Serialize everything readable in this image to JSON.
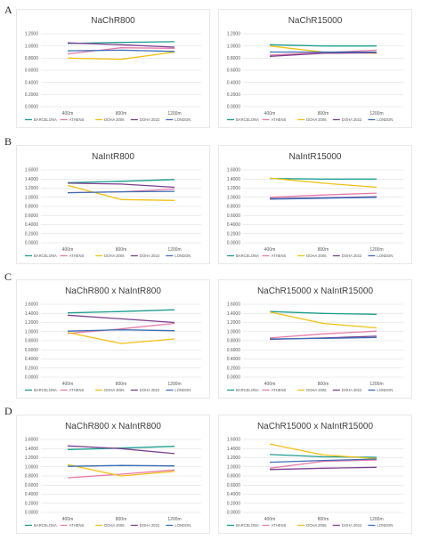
{
  "panel_letters": [
    "A",
    "B",
    "C",
    "D"
  ],
  "legend": [
    "BARCELONA",
    "ATHENS",
    "DOHA 2006",
    "DOHA 2022",
    "LONDON"
  ],
  "series_colors": [
    "#1a9e8f",
    "#e87aa8",
    "#f2c014",
    "#7b3f8f",
    "#3a6fb5"
  ],
  "chart_data": [
    {
      "type": "line",
      "title": "NaChR800",
      "x": [
        "400m",
        "800m",
        "1200m"
      ],
      "ylim": [
        0,
        1.2
      ],
      "yticks": [
        "0.0000",
        "0.2000",
        "0.4000",
        "0.6000",
        "0.8000",
        "1.0000",
        "1.2000"
      ],
      "grid": true,
      "legend_position": "bottom",
      "series": [
        {
          "name": "BARCELONA",
          "values": [
            1.04,
            1.06,
            1.07
          ]
        },
        {
          "name": "ATHENS",
          "values": [
            0.87,
            0.97,
            0.96
          ]
        },
        {
          "name": "DOHA 2006",
          "values": [
            0.8,
            0.78,
            0.9
          ]
        },
        {
          "name": "DOHA 2022",
          "values": [
            1.05,
            1.02,
            0.98
          ]
        },
        {
          "name": "LONDON",
          "values": [
            0.92,
            0.93,
            0.91
          ]
        }
      ]
    },
    {
      "type": "line",
      "title": "NaChR15000",
      "x": [
        "400m",
        "800m",
        "1200m"
      ],
      "ylim": [
        0,
        1.2
      ],
      "yticks": [
        "0.0000",
        "0.2000",
        "0.4000",
        "0.6000",
        "0.8000",
        "1.0000",
        "1.2000"
      ],
      "grid": true,
      "legend_position": "bottom",
      "series": [
        {
          "name": "BARCELONA",
          "values": [
            1.02,
            1.0,
            1.0
          ]
        },
        {
          "name": "ATHENS",
          "values": [
            0.85,
            0.89,
            0.93
          ]
        },
        {
          "name": "DOHA 2006",
          "values": [
            1.0,
            0.9,
            0.88
          ]
        },
        {
          "name": "DOHA 2022",
          "values": [
            0.83,
            0.88,
            0.89
          ]
        },
        {
          "name": "LONDON",
          "values": [
            0.9,
            0.9,
            0.9
          ]
        }
      ]
    },
    {
      "type": "line",
      "title": "NaIntR800",
      "x": [
        "400m",
        "800m",
        "1200m"
      ],
      "ylim": [
        0,
        1.6
      ],
      "yticks": [
        "0.0000",
        "0.2000",
        "0.4000",
        "0.6000",
        "0.8000",
        "1.0000",
        "1.2000",
        "1.4000",
        "1.6000"
      ],
      "grid": true,
      "legend_position": "bottom",
      "series": [
        {
          "name": "BARCELONA",
          "values": [
            1.32,
            1.35,
            1.39
          ]
        },
        {
          "name": "ATHENS",
          "values": [
            1.1,
            1.12,
            1.18
          ]
        },
        {
          "name": "DOHA 2006",
          "values": [
            1.26,
            0.95,
            0.93
          ]
        },
        {
          "name": "DOHA 2022",
          "values": [
            1.31,
            1.29,
            1.22
          ]
        },
        {
          "name": "LONDON",
          "values": [
            1.1,
            1.12,
            1.13
          ]
        }
      ]
    },
    {
      "type": "line",
      "title": "NaIntR15000",
      "x": [
        "400m",
        "800m",
        "1200m"
      ],
      "ylim": [
        0,
        1.6
      ],
      "yticks": [
        "0.0000",
        "0.2000",
        "0.4000",
        "0.6000",
        "0.8000",
        "1.0000",
        "1.2000",
        "1.4000",
        "1.6000"
      ],
      "grid": true,
      "legend_position": "bottom",
      "series": [
        {
          "name": "BARCELONA",
          "values": [
            1.41,
            1.4,
            1.4
          ]
        },
        {
          "name": "ATHENS",
          "values": [
            1.0,
            1.05,
            1.09
          ]
        },
        {
          "name": "DOHA 2006",
          "values": [
            1.42,
            1.31,
            1.22
          ]
        },
        {
          "name": "DOHA 2022",
          "values": [
            0.97,
            0.99,
            1.01
          ]
        },
        {
          "name": "LONDON",
          "values": [
            0.96,
            0.98,
            1.0
          ]
        }
      ]
    },
    {
      "type": "line",
      "title": "NaChR800 x NaIntR800",
      "x": [
        "400m",
        "800m",
        "1200m"
      ],
      "ylim": [
        0,
        1.6
      ],
      "yticks": [
        "0.0000",
        "0.2000",
        "0.4000",
        "0.6000",
        "0.8000",
        "1.0000",
        "1.2000",
        "1.4000",
        "1.6000"
      ],
      "grid": true,
      "legend_position": "bottom",
      "series": [
        {
          "name": "BARCELONA",
          "values": [
            1.41,
            1.44,
            1.48
          ]
        },
        {
          "name": "ATHENS",
          "values": [
            0.96,
            1.06,
            1.18
          ]
        },
        {
          "name": "DOHA 2006",
          "values": [
            0.98,
            0.74,
            0.84
          ]
        },
        {
          "name": "DOHA 2022",
          "values": [
            1.36,
            1.28,
            1.2
          ]
        },
        {
          "name": "LONDON",
          "values": [
            1.01,
            1.04,
            1.02
          ]
        }
      ]
    },
    {
      "type": "line",
      "title": "NaChR15000 x NaIntR15000",
      "x": [
        "400m",
        "800m",
        "1200m"
      ],
      "ylim": [
        0,
        1.6
      ],
      "yticks": [
        "0.0000",
        "0.2000",
        "0.4000",
        "0.6000",
        "0.8000",
        "1.0000",
        "1.2000",
        "1.4000",
        "1.6000"
      ],
      "grid": true,
      "legend_position": "bottom",
      "series": [
        {
          "name": "BARCELONA",
          "values": [
            1.44,
            1.4,
            1.38
          ]
        },
        {
          "name": "ATHENS",
          "values": [
            0.86,
            0.95,
            1.01
          ]
        },
        {
          "name": "DOHA 2006",
          "values": [
            1.43,
            1.18,
            1.08
          ]
        },
        {
          "name": "DOHA 2022",
          "values": [
            0.83,
            0.86,
            0.9
          ]
        },
        {
          "name": "LONDON",
          "values": [
            0.84,
            0.85,
            0.87
          ]
        }
      ]
    },
    {
      "type": "line",
      "title": "NaChR800 x NaIntR800",
      "x": [
        "400m",
        "800m",
        "1200m"
      ],
      "ylim": [
        0,
        1.6
      ],
      "yticks": [
        "0.0000",
        "0.2000",
        "0.4000",
        "0.6000",
        "0.8000",
        "1.0000",
        "1.2000",
        "1.4000",
        "1.6000"
      ],
      "grid": true,
      "legend_position": "bottom",
      "series": [
        {
          "name": "BARCELONA",
          "values": [
            1.38,
            1.41,
            1.45
          ]
        },
        {
          "name": "ATHENS",
          "values": [
            0.76,
            0.84,
            0.93
          ]
        },
        {
          "name": "DOHA 2006",
          "values": [
            1.05,
            0.8,
            0.9
          ]
        },
        {
          "name": "DOHA 2022",
          "values": [
            1.46,
            1.4,
            1.29
          ]
        },
        {
          "name": "LONDON",
          "values": [
            1.01,
            1.03,
            1.02
          ]
        }
      ]
    },
    {
      "type": "line",
      "title": "NaChR15000 x NaIntR15000",
      "x": [
        "400m",
        "800m",
        "1200m"
      ],
      "ylim": [
        0,
        1.6
      ],
      "yticks": [
        "0.0000",
        "0.2000",
        "0.4000",
        "0.6000",
        "0.8000",
        "1.0000",
        "1.2000",
        "1.4000",
        "1.6000"
      ],
      "grid": true,
      "legend_position": "bottom",
      "series": [
        {
          "name": "BARCELONA",
          "values": [
            1.27,
            1.22,
            1.21
          ]
        },
        {
          "name": "ATHENS",
          "values": [
            0.97,
            1.12,
            1.15
          ]
        },
        {
          "name": "DOHA 2006",
          "values": [
            1.5,
            1.26,
            1.18
          ]
        },
        {
          "name": "DOHA 2022",
          "values": [
            0.94,
            0.97,
            0.99
          ]
        },
        {
          "name": "LONDON",
          "values": [
            1.1,
            1.14,
            1.17
          ]
        }
      ]
    }
  ]
}
